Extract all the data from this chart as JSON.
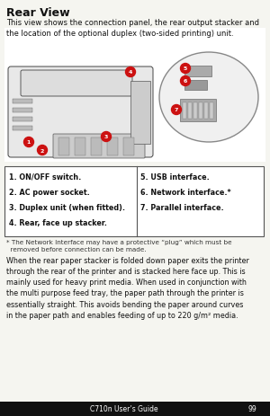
{
  "bg_color": "#f5f5f0",
  "white": "#ffffff",
  "title": "Rear View",
  "intro_text": "This view shows the connection panel, the rear output stacker and\nthe location of the optional duplex (two-sided printing) unit.",
  "table_left": [
    "1. ON/OFF switch.",
    "2. AC power socket.",
    "3. Duplex unit (when fitted).",
    "4. Rear, face up stacker."
  ],
  "table_right": [
    "5. USB interface.",
    "6. Network interface.*",
    "7. Parallel interface."
  ],
  "footnote": "* The Network Interface may have a protective “plug” which must be\n  removed before connection can be made.",
  "body_text": "When the rear paper stacker is folded down paper exits the printer\nthrough the rear of the printer and is stacked here face up. This is\nmainly used for heavy print media. When used in conjunction with\nthe multi purpose feed tray, the paper path through the printer is\nessentially straight. This avoids bending the paper around curves\nin the paper path and enables feeding of up to 220 g/m² media.",
  "footer_text": "C710n User’s Guide",
  "page_num": "99",
  "outer_bg": "#1a1a1a",
  "label_color": "#cc1111",
  "text_color": "#111111",
  "table_border": "#555555",
  "footnote_color": "#333333"
}
